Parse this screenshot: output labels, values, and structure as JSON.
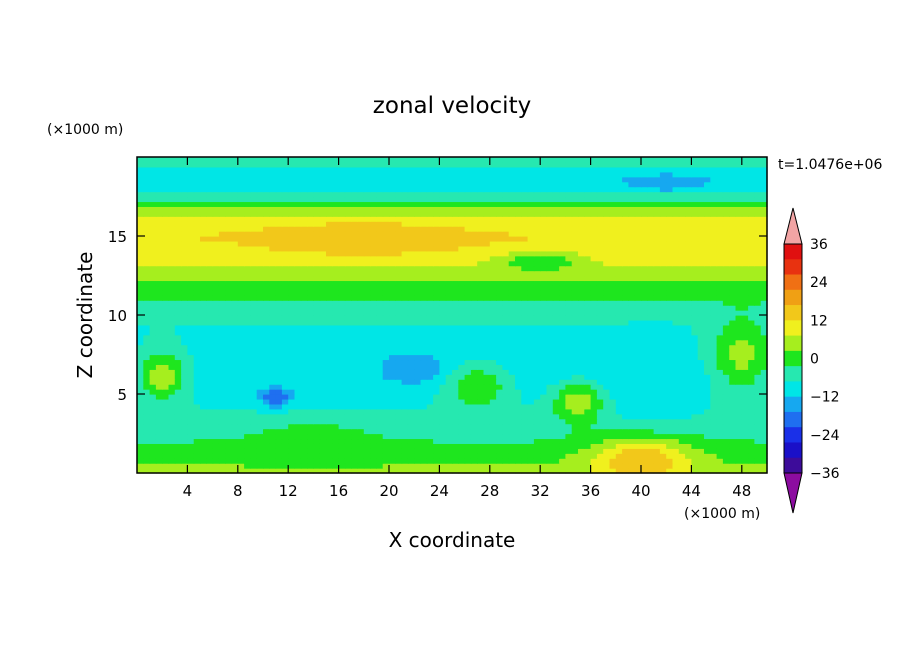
{
  "chart_data": {
    "type": "heatmap",
    "title": "zonal velocity",
    "xlabel": "X coordinate",
    "ylabel": "Z coordinate",
    "x_unit": "(×1000 m)",
    "y_unit": "(×1000 m)",
    "time_label": "t=1.0476e+06",
    "xlim": [
      0,
      50
    ],
    "ylim": [
      0,
      20
    ],
    "x_ticks": [
      4,
      8,
      12,
      16,
      20,
      24,
      28,
      32,
      36,
      40,
      44,
      48
    ],
    "y_ticks": [
      5,
      10,
      15
    ],
    "colorbar": {
      "tick_labels": [
        "36",
        "24",
        "12",
        "0",
        "-12",
        "-24",
        "-36"
      ],
      "tick_values": [
        36,
        24,
        12,
        0,
        -12,
        -24,
        -36
      ],
      "levels": [
        -42,
        -36,
        -30,
        -24,
        -18,
        -12,
        -6,
        0,
        6,
        12,
        18,
        24,
        30,
        36,
        42
      ],
      "colors": [
        "#8c0ca0",
        "#3d0c9a",
        "#1a10c8",
        "#1a30e8",
        "#1f6ff0",
        "#16a8f0",
        "#00e6e6",
        "#26e8b0",
        "#1ee61e",
        "#a6ee1e",
        "#f0f01e",
        "#f2c81a",
        "#f0a014",
        "#f07014",
        "#e83210",
        "#e01010",
        "#f2a4a4"
      ]
    },
    "bands": [
      {
        "z": 19.5,
        "value": -4
      },
      {
        "z": 18.5,
        "value": -12
      },
      {
        "z": 17.6,
        "value": -4
      },
      {
        "z": 17.0,
        "value": 4
      },
      {
        "z": 16.2,
        "value": 12
      },
      {
        "z": 15.0,
        "value": 18
      },
      {
        "z": 13.5,
        "value": 14
      },
      {
        "z": 12.2,
        "value": 6
      },
      {
        "z": 11.0,
        "value": 0
      },
      {
        "z": 9.5,
        "value": -6
      },
      {
        "z": 8.0,
        "value": -8
      },
      {
        "z": 6.0,
        "value": -10
      },
      {
        "z": 4.0,
        "value": -6
      },
      {
        "z": 2.5,
        "value": -2
      },
      {
        "z": 1.0,
        "value": 4
      },
      {
        "z": 0.0,
        "value": 8
      }
    ],
    "features": [
      {
        "x": 18,
        "z": 14.9,
        "rx": 8,
        "rz": 1.0,
        "value": 24
      },
      {
        "x": 40,
        "z": 0.8,
        "rx": 4,
        "rz": 1.4,
        "value": 24
      },
      {
        "x": 22,
        "z": 6.7,
        "rx": 2.5,
        "rz": 0.9,
        "value": -18
      },
      {
        "x": 11,
        "z": 4.8,
        "rx": 1.2,
        "rz": 0.6,
        "value": -24
      },
      {
        "x": 42,
        "z": 18.4,
        "rx": 2.5,
        "rz": 0.5,
        "value": -18
      },
      {
        "x": 21,
        "z": 18.6,
        "rx": 3,
        "rz": 0.4,
        "value": -12
      },
      {
        "x": 41,
        "z": 5.5,
        "rx": 3,
        "rz": 2.2,
        "value": -12
      },
      {
        "x": 27,
        "z": 5.5,
        "rx": 2.5,
        "rz": 1.4,
        "value": 6
      },
      {
        "x": 35,
        "z": 4.5,
        "rx": 2,
        "rz": 1.3,
        "value": 10
      },
      {
        "x": 2,
        "z": 6.2,
        "rx": 2,
        "rz": 1.6,
        "value": 10
      },
      {
        "x": 48,
        "z": 7.5,
        "rx": 2.5,
        "rz": 2.4,
        "value": 8
      },
      {
        "x": 32,
        "z": 13.4,
        "rx": 3,
        "rz": 0.6,
        "value": 0
      },
      {
        "x": 14,
        "z": 2.0,
        "rx": 5,
        "rz": 1.2,
        "value": 4
      }
    ]
  }
}
